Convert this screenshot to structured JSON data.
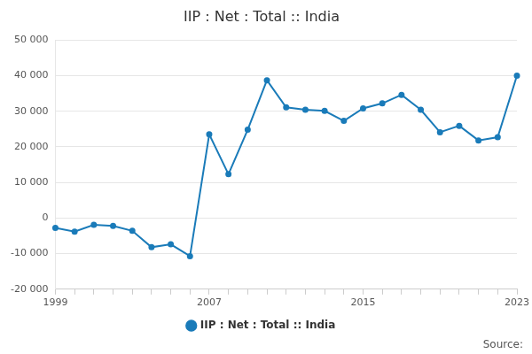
{
  "chart_data": {
    "type": "line",
    "title": "IIP : Net : Total :: India",
    "source": "Source:",
    "categories": [
      "1999",
      null,
      null,
      null,
      null,
      null,
      null,
      null,
      "2007",
      null,
      null,
      null,
      null,
      null,
      null,
      null,
      "2015",
      null,
      null,
      null,
      null,
      null,
      null,
      null,
      "2023"
    ],
    "series": [
      {
        "name": "IIP : Net : Total :: India",
        "color": "#1a7bb9",
        "marker": "circle",
        "values": [
          -2800,
          -3800,
          -1900,
          -2200,
          -3600,
          -8200,
          -7400,
          -10700,
          23500,
          12300,
          24800,
          38700,
          31100,
          30400,
          30100,
          27300,
          30800,
          32200,
          34600,
          30400,
          24100,
          25900,
          21800,
          22700,
          40000
        ]
      }
    ],
    "ylim": [
      -20000,
      50000
    ],
    "yticks": [
      {
        "value": -20000,
        "label": "-20 000"
      },
      {
        "value": -10000,
        "label": "-10 000"
      },
      0,
      {
        "value": 10000,
        "label": "10 000"
      },
      {
        "value": 20000,
        "label": "20 000"
      },
      {
        "value": 30000,
        "label": "30 000"
      },
      {
        "value": 40000,
        "label": "40 000"
      },
      {
        "value": 50000,
        "label": "50 000"
      }
    ],
    "grid": true,
    "legend": "bottom"
  }
}
